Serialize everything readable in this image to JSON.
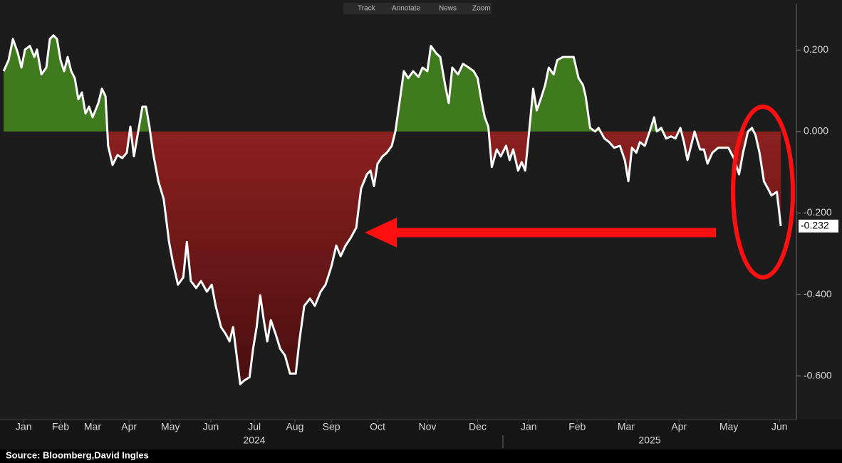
{
  "toolbar": [
    "Track",
    "Annotate",
    "News",
    "Zoom"
  ],
  "source": "Source:  Bloomberg,David Ingles",
  "chart_data": {
    "type": "area",
    "xlim": [
      0,
      17.8
    ],
    "ylim": [
      -0.707,
      0.314
    ],
    "yticks": [
      {
        "value": 0.2,
        "label": "0.200"
      },
      {
        "value": 0,
        "label": "0.000"
      },
      {
        "value": -0.2,
        "label": "-0.200"
      },
      {
        "value": -0.4,
        "label": "-0.400"
      },
      {
        "value": -0.6,
        "label": "-0.600"
      }
    ],
    "xticks": [
      {
        "value": 0.5,
        "label": "Jan"
      },
      {
        "value": 1.33,
        "label": "Feb"
      },
      {
        "value": 2.05,
        "label": "Mar"
      },
      {
        "value": 2.87,
        "label": "Apr"
      },
      {
        "value": 3.8,
        "label": "May"
      },
      {
        "value": 4.71,
        "label": "Jun"
      },
      {
        "value": 5.69,
        "label": "Jul"
      },
      {
        "value": 6.6,
        "label": "Aug"
      },
      {
        "value": 7.42,
        "label": "Sep"
      },
      {
        "value": 8.46,
        "label": "Oct"
      },
      {
        "value": 9.58,
        "label": "Nov"
      },
      {
        "value": 10.71,
        "label": "Dec"
      },
      {
        "value": 11.86,
        "label": "Jan"
      },
      {
        "value": 12.95,
        "label": "Feb"
      },
      {
        "value": 14.05,
        "label": "Mar"
      },
      {
        "value": 15.24,
        "label": "Apr"
      },
      {
        "value": 16.36,
        "label": "May"
      },
      {
        "value": 17.5,
        "label": "Jun"
      }
    ],
    "year_labels": [
      "2024",
      "2025"
    ],
    "grid": false,
    "positive_color": "#3f7a1f",
    "negative_color": [
      "#8c2020",
      "#3f0c0c"
    ],
    "x": [
      0.05,
      0.16,
      0.26,
      0.37,
      0.45,
      0.53,
      0.64,
      0.74,
      0.8,
      0.9,
      1.01,
      1.09,
      1.17,
      1.25,
      1.33,
      1.41,
      1.49,
      1.57,
      1.65,
      1.73,
      1.81,
      1.89,
      1.97,
      2.05,
      2.18,
      2.26,
      2.34,
      2.4,
      2.5,
      2.61,
      2.72,
      2.82,
      2.9,
      2.98,
      3.09,
      3.17,
      3.25,
      3.33,
      3.41,
      3.53,
      3.65,
      3.77,
      3.86,
      3.97,
      4.09,
      4.17,
      4.26,
      4.38,
      4.49,
      4.62,
      4.73,
      4.82,
      4.94,
      5.05,
      5.13,
      5.21,
      5.29,
      5.37,
      5.46,
      5.58,
      5.66,
      5.74,
      5.82,
      5.9,
      5.98,
      6.06,
      6.17,
      6.27,
      6.38,
      6.49,
      6.62,
      6.7,
      6.81,
      6.94,
      7.05,
      7.18,
      7.29,
      7.42,
      7.53,
      7.63,
      7.74,
      7.85,
      7.98,
      8.09,
      8.22,
      8.3,
      8.38,
      8.46,
      8.57,
      8.67,
      8.78,
      8.86,
      8.94,
      9.05,
      9.15,
      9.26,
      9.38,
      9.47,
      9.58,
      9.66,
      9.78,
      9.87,
      9.98,
      10.06,
      10.14,
      10.27,
      10.38,
      10.51,
      10.62,
      10.71,
      10.79,
      10.87,
      10.95,
      11.03,
      11.14,
      11.23,
      11.35,
      11.43,
      11.51,
      11.62,
      11.7,
      11.78,
      11.86,
      11.96,
      12.04,
      12.15,
      12.23,
      12.31,
      12.42,
      12.5,
      12.63,
      12.76,
      12.87,
      12.98,
      13.08,
      13.14,
      13.24,
      13.35,
      13.43,
      13.56,
      13.67,
      13.78,
      13.91,
      14.02,
      14.1,
      14.18,
      14.28,
      14.36,
      14.47,
      14.58,
      14.68,
      14.74,
      14.84,
      14.95,
      15.06,
      15.16,
      15.27,
      15.35,
      15.43,
      15.51,
      15.59,
      15.71,
      15.8,
      15.88,
      15.99,
      16.12,
      16.23,
      16.35,
      16.47,
      16.59,
      16.68,
      16.79,
      16.88,
      16.96,
      17.05,
      17.15,
      17.24,
      17.32,
      17.44,
      17.53
    ],
    "series": [
      {
        "color": "#ffffff",
        "values": [
          0.148,
          0.175,
          0.227,
          0.192,
          0.157,
          0.201,
          0.21,
          0.183,
          0.201,
          0.14,
          0.157,
          0.227,
          0.236,
          0.227,
          0.175,
          0.148,
          0.183,
          0.148,
          0.131,
          0.079,
          0.096,
          0.044,
          0.061,
          0.035,
          0.07,
          0.105,
          0.087,
          -0.035,
          -0.082,
          -0.058,
          -0.065,
          -0.052,
          0.012,
          -0.061,
          0.009,
          0.061,
          0.061,
          0.012,
          -0.052,
          -0.122,
          -0.166,
          -0.271,
          -0.323,
          -0.376,
          -0.358,
          -0.271,
          -0.367,
          -0.384,
          -0.367,
          -0.393,
          -0.376,
          -0.428,
          -0.48,
          -0.498,
          -0.515,
          -0.48,
          -0.55,
          -0.62,
          -0.611,
          -0.603,
          -0.533,
          -0.48,
          -0.402,
          -0.463,
          -0.515,
          -0.463,
          -0.498,
          -0.533,
          -0.55,
          -0.594,
          -0.594,
          -0.515,
          -0.428,
          -0.41,
          -0.428,
          -0.393,
          -0.376,
          -0.332,
          -0.28,
          -0.306,
          -0.28,
          -0.262,
          -0.236,
          -0.14,
          -0.105,
          -0.096,
          -0.134,
          -0.079,
          -0.061,
          -0.052,
          -0.035,
          0.0,
          0.061,
          0.148,
          0.131,
          0.148,
          0.134,
          0.157,
          0.148,
          0.21,
          0.192,
          0.183,
          0.114,
          0.07,
          0.157,
          0.14,
          0.166,
          0.157,
          0.148,
          0.131,
          0.079,
          0.035,
          0.012,
          -0.087,
          -0.044,
          -0.061,
          -0.035,
          -0.07,
          -0.044,
          -0.096,
          -0.075,
          -0.096,
          -0.009,
          0.105,
          0.052,
          0.087,
          0.114,
          0.157,
          0.14,
          0.175,
          0.183,
          0.183,
          0.183,
          0.131,
          0.114,
          0.087,
          0.009,
          0.0,
          0.009,
          -0.017,
          -0.026,
          -0.04,
          -0.035,
          -0.07,
          -0.122,
          -0.04,
          -0.052,
          -0.026,
          -0.035,
          0.0,
          0.035,
          0.0,
          0.009,
          -0.017,
          -0.012,
          -0.017,
          0.009,
          -0.026,
          -0.07,
          -0.035,
          0.0,
          -0.044,
          -0.044,
          -0.079,
          -0.052,
          -0.04,
          -0.04,
          -0.04,
          -0.065,
          -0.105,
          -0.052,
          0.0,
          0.009,
          -0.009,
          -0.052,
          -0.122,
          -0.14,
          -0.157,
          -0.148,
          -0.232
        ]
      }
    ]
  }
}
